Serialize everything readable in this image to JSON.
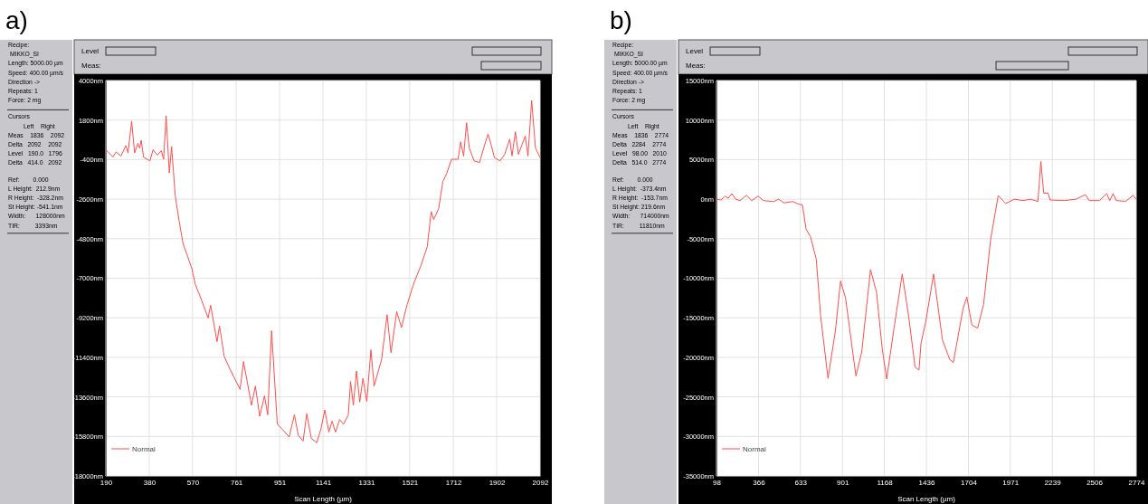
{
  "chart_data": [
    {
      "type": "line",
      "title": "a)",
      "xlabel": "Scan Length (µm)",
      "grid": true,
      "legend": "bottom left",
      "annotations": [
        "Level",
        "Meas:",
        "Recipe:",
        " MIKKO_SI",
        "Length: 5000.00 µm",
        "Speed: 400.00 µm/s",
        "Direction ->",
        "Repeats: 1",
        "Force: 2 mg",
        "Cursors",
        "         Left    Right",
        "Meas    1836    2092",
        "Delta   2092    2092",
        "Level   190.0   1796",
        "Delta   414.0   2092",
        "Ref:        0.000",
        "L Height:  212.9nm",
        "R Height:  -328.2nm",
        "St Height: -541.1nm",
        "Width:      128000nm",
        "TIR:         3393nm"
      ],
      "xlim": [
        190,
        2092
      ],
      "xticks": [
        190,
        380,
        570,
        761,
        951,
        1141,
        1331,
        1521,
        1712,
        1902,
        2092
      ],
      "ylim": [
        -18000,
        4000
      ],
      "yticks": [
        {
          "value": 4000,
          "label": "4000nm"
        },
        {
          "value": 1800,
          "label": "1800nm"
        },
        {
          "value": -400,
          "label": "-400nm"
        },
        {
          "value": -2600,
          "label": "-2600nm"
        },
        {
          "value": -4800,
          "label": "-4800nm"
        },
        {
          "value": -7000,
          "label": "-7000nm"
        },
        {
          "value": -9200,
          "label": "-9200nm"
        },
        {
          "value": -11400,
          "label": "-11400nm"
        },
        {
          "value": -13600,
          "label": "-13600nm"
        },
        {
          "value": -15800,
          "label": "-15800nm"
        },
        {
          "value": -18000,
          "label": "-18000nm"
        }
      ],
      "series": [
        {
          "name": "Normal",
          "color": "#ff4d4d",
          "x": [
            190,
            221,
            235,
            256,
            278,
            287,
            303,
            316,
            330,
            338,
            345,
            355,
            383,
            397,
            415,
            433,
            443,
            454,
            468,
            478,
            494,
            511,
            528,
            567,
            582,
            610,
            638,
            649,
            677,
            688,
            708,
            736,
            778,
            793,
            828,
            845,
            864,
            885,
            899,
            916,
            941,
            962,
            993,
            1016,
            1033,
            1054,
            1070,
            1090,
            1114,
            1132,
            1149,
            1167,
            1181,
            1196,
            1214,
            1231,
            1252,
            1262,
            1274,
            1288,
            1302,
            1316,
            1333,
            1351,
            1365,
            1398,
            1422,
            1439,
            1464,
            1485,
            1507,
            1528,
            1542,
            1570,
            1598,
            1615,
            1626,
            1648,
            1666,
            1683,
            1704,
            1733,
            1744,
            1757,
            1770,
            1782,
            1803,
            1827,
            1845,
            1864,
            1878,
            1892,
            1916,
            1937,
            1959,
            1969,
            1984,
            1997,
            2027,
            2039,
            2055,
            2072,
            2092
          ],
          "values": [
            150,
            -256,
            27,
            -203,
            380,
            -26,
            1740,
            -26,
            503,
            239,
            680,
            -256,
            -468,
            150,
            -150,
            97,
            -380,
            2040,
            -1140,
            327,
            -2410,
            -3820,
            -5060,
            -6470,
            -7350,
            -8240,
            -9210,
            -8500,
            -10530,
            -9650,
            -11330,
            -12120,
            -13180,
            -11630,
            -14070,
            -13000,
            -14680,
            -13540,
            -14600,
            -9920,
            -15120,
            -15390,
            -15830,
            -14600,
            -15740,
            -16060,
            -14540,
            -15920,
            -16150,
            -15390,
            -14330,
            -15560,
            -14950,
            -15560,
            -14860,
            -15120,
            -14600,
            -12740,
            -14070,
            -12160,
            -13890,
            -12570,
            -13850,
            -10980,
            -13000,
            -11510,
            -9030,
            -11150,
            -8860,
            -9740,
            -8590,
            -7710,
            -7180,
            -6300,
            -5240,
            -3290,
            -3730,
            -3120,
            -1620,
            -1170,
            -380,
            -380,
            590,
            -200,
            1650,
            240,
            -470,
            -560,
            240,
            1030,
            410,
            -290,
            -470,
            -110,
            740,
            -200,
            1150,
            -110,
            910,
            -200,
            2890,
            240,
            -290
          ]
        }
      ]
    },
    {
      "type": "line",
      "title": "b)",
      "xlabel": "Scan Length (µm)",
      "grid": true,
      "legend": "bottom left",
      "annotations": [
        "Level",
        "Meas:",
        "Recipe:",
        " MIKKO_SI",
        "Length: 5000.00 µm",
        "Speed: 400.00 µm/s",
        "Direction ->",
        "Repeats: 1",
        "Force: 2 mg",
        "Cursors",
        "         Left    Right",
        "Meas    1836    2774",
        "Delta   2284    2774",
        "Level   98.00   2010",
        "Delta   514.0   2774",
        "Ref:        0.000",
        "L Height:  -373.4nm",
        "R Height:  -153.7nm",
        "St Height: 219.6nm",
        "Width:      714000nm",
        "TIR:         11810nm"
      ],
      "xlim": [
        98,
        2774
      ],
      "xticks": [
        98,
        366,
        633,
        901,
        1168,
        1436,
        1704,
        1971,
        2239,
        2506,
        2774
      ],
      "ylim": [
        -35000,
        15000
      ],
      "yticks": [
        {
          "value": 15000,
          "label": "15000nm"
        },
        {
          "value": 10000,
          "label": "10000nm"
        },
        {
          "value": 5000,
          "label": "5000nm"
        },
        {
          "value": 0,
          "label": "0nm"
        },
        {
          "value": -5000,
          "label": "-5000nm"
        },
        {
          "value": -10000,
          "label": "-10000nm"
        },
        {
          "value": -15000,
          "label": "-15000nm"
        },
        {
          "value": -20000,
          "label": "-20000nm"
        },
        {
          "value": -25000,
          "label": "-25000nm"
        },
        {
          "value": -30000,
          "label": "-30000nm"
        },
        {
          "value": -35000,
          "label": "-35000nm"
        }
      ],
      "series": [
        {
          "name": "Normal",
          "color": "#ff4d4d",
          "x": [
            98,
            126,
            154,
            173,
            196,
            220,
            248,
            289,
            323,
            364,
            397,
            463,
            494,
            528,
            584,
            622,
            646,
            669,
            697,
            734,
            762,
            809,
            856,
            889,
            921,
            959,
            987,
            1024,
            1080,
            1118,
            1155,
            1183,
            1230,
            1282,
            1323,
            1364,
            1389,
            1402,
            1432,
            1482,
            1539,
            1585,
            1608,
            1670,
            1694,
            1726,
            1763,
            1801,
            1847,
            1894,
            1941,
            1997,
            2053,
            2100,
            2147,
            2166,
            2184,
            2212,
            2225,
            2315,
            2390,
            2450,
            2474,
            2539,
            2586,
            2605,
            2627,
            2646,
            2708,
            2755,
            2768,
            2774
          ],
          "values": [
            0,
            -110,
            390,
            110,
            700,
            0,
            -180,
            500,
            -180,
            390,
            -180,
            -300,
            0,
            -480,
            -300,
            -630,
            -740,
            -3780,
            -4730,
            -7570,
            -14780,
            -22670,
            -16680,
            -10340,
            -12510,
            -18200,
            -22370,
            -19330,
            -8900,
            -11750,
            -18960,
            -22750,
            -16300,
            -9470,
            -14780,
            -21230,
            -21610,
            -18200,
            -15540,
            -9470,
            -17820,
            -20280,
            -20660,
            -13840,
            -12360,
            -15920,
            -16300,
            -13270,
            -4920,
            460,
            -560,
            0,
            -180,
            0,
            -300,
            4760,
            760,
            760,
            -110,
            -180,
            0,
            570,
            -180,
            -180,
            700,
            -180,
            700,
            -180,
            -260,
            500,
            110,
            0
          ]
        }
      ]
    }
  ]
}
